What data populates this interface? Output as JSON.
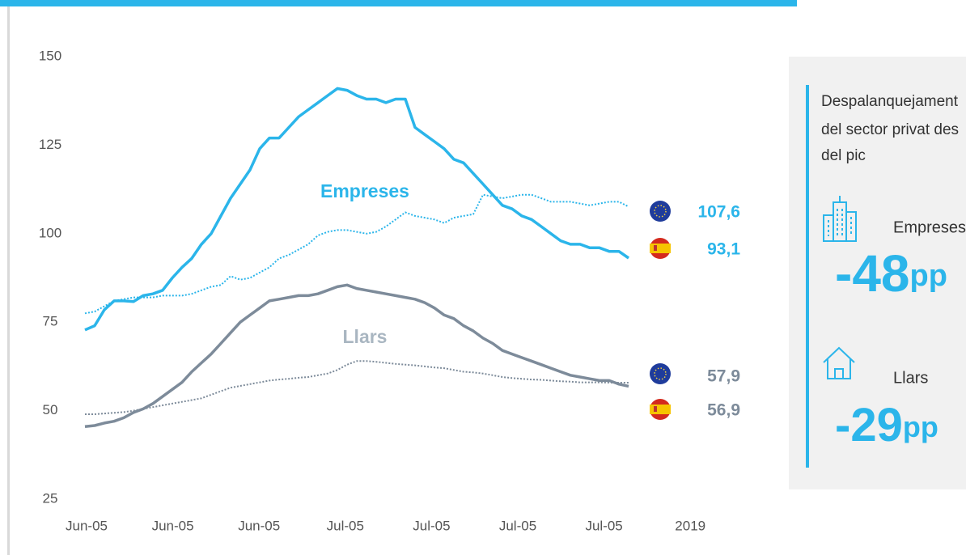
{
  "chart_data": {
    "type": "line",
    "x_labels": [
      "Jun-05",
      "Jun-05",
      "Jun-05",
      "Jul-05",
      "Jul-05",
      "Jul-05",
      "Jul-05",
      "2019"
    ],
    "ylim": [
      25,
      150
    ],
    "yticks": [
      25,
      50,
      75,
      100,
      125,
      150
    ],
    "annotations": [
      {
        "text": "Empreses",
        "color": "#2bb5ea"
      },
      {
        "text": "Llars",
        "color": "#a9b6c1"
      }
    ],
    "series": [
      {
        "color": "#2bb5ea",
        "style": "dotted",
        "end_label": "107,6",
        "values": [
          77.5,
          78,
          79.5,
          81,
          81.5,
          82,
          82,
          82,
          82.5,
          82.5,
          82.5,
          83,
          84,
          85,
          85.5,
          88,
          87,
          87.5,
          89,
          90.5,
          93,
          94,
          95.5,
          97,
          99.5,
          100.5,
          101,
          101,
          100.5,
          100,
          100.5,
          102,
          104,
          106,
          105,
          104.5,
          104,
          103,
          104.5,
          105,
          105.5,
          111,
          110.5,
          110,
          110.5,
          111,
          111,
          110,
          109,
          109,
          109,
          108.5,
          108,
          108.5,
          109,
          109,
          107.6
        ]
      },
      {
        "color": "#2bb5ea",
        "style": "solid",
        "end_label": "93,1",
        "values": [
          72.8,
          74,
          78.5,
          81,
          81,
          80.8,
          82.5,
          83,
          84,
          87.5,
          90.5,
          93,
          97,
          100,
          105,
          110,
          114,
          118,
          124,
          127,
          127,
          130,
          133,
          135,
          137,
          139,
          141,
          140.5,
          139,
          138,
          138,
          137,
          138,
          138,
          130,
          128,
          126,
          124,
          121,
          120,
          117,
          114,
          111,
          108,
          107,
          105,
          104,
          102,
          100,
          98,
          97,
          97,
          96,
          96,
          95,
          95,
          93.1
        ]
      },
      {
        "color": "#7d8b9a",
        "style": "dotted",
        "end_label": "57,9",
        "values": [
          49,
          49,
          49.2,
          49.4,
          49.6,
          50,
          50.5,
          51,
          51.5,
          52,
          52.5,
          53,
          53.5,
          54.5,
          55.5,
          56.5,
          57,
          57.5,
          58,
          58.5,
          58.8,
          59,
          59.3,
          59.5,
          60,
          60.5,
          61.5,
          63,
          64,
          64,
          63.8,
          63.5,
          63.2,
          63,
          62.8,
          62.5,
          62.2,
          62,
          61.5,
          61,
          60.8,
          60.5,
          60,
          59.5,
          59.2,
          59,
          58.8,
          58.7,
          58.5,
          58.3,
          58.2,
          58,
          58,
          58,
          57.9,
          57.9,
          57.9
        ]
      },
      {
        "color": "#7d8b9a",
        "style": "solid",
        "end_label": "56,9",
        "values": [
          45.5,
          45.8,
          46.5,
          47,
          48,
          49.5,
          50.5,
          52,
          54,
          56,
          58,
          61,
          63.5,
          66,
          69,
          72,
          75,
          77,
          79,
          81,
          81.5,
          82,
          82.5,
          82.5,
          83,
          84,
          85,
          85.5,
          84.5,
          84,
          83.5,
          83,
          82.5,
          82,
          81.5,
          80.5,
          79,
          77,
          76,
          74,
          72.5,
          70.5,
          69,
          67,
          66,
          65,
          64,
          63,
          62,
          61,
          60,
          59.5,
          59,
          58.5,
          58.5,
          57.5,
          56.9
        ]
      }
    ]
  },
  "panel": {
    "heading": [
      "Despalanquejament",
      "del sector privat des",
      "del pic"
    ],
    "items": [
      {
        "label": "Empreses",
        "value": -48,
        "unit": "pp"
      },
      {
        "label": "Llars",
        "value": -29,
        "unit": "pp"
      }
    ]
  }
}
